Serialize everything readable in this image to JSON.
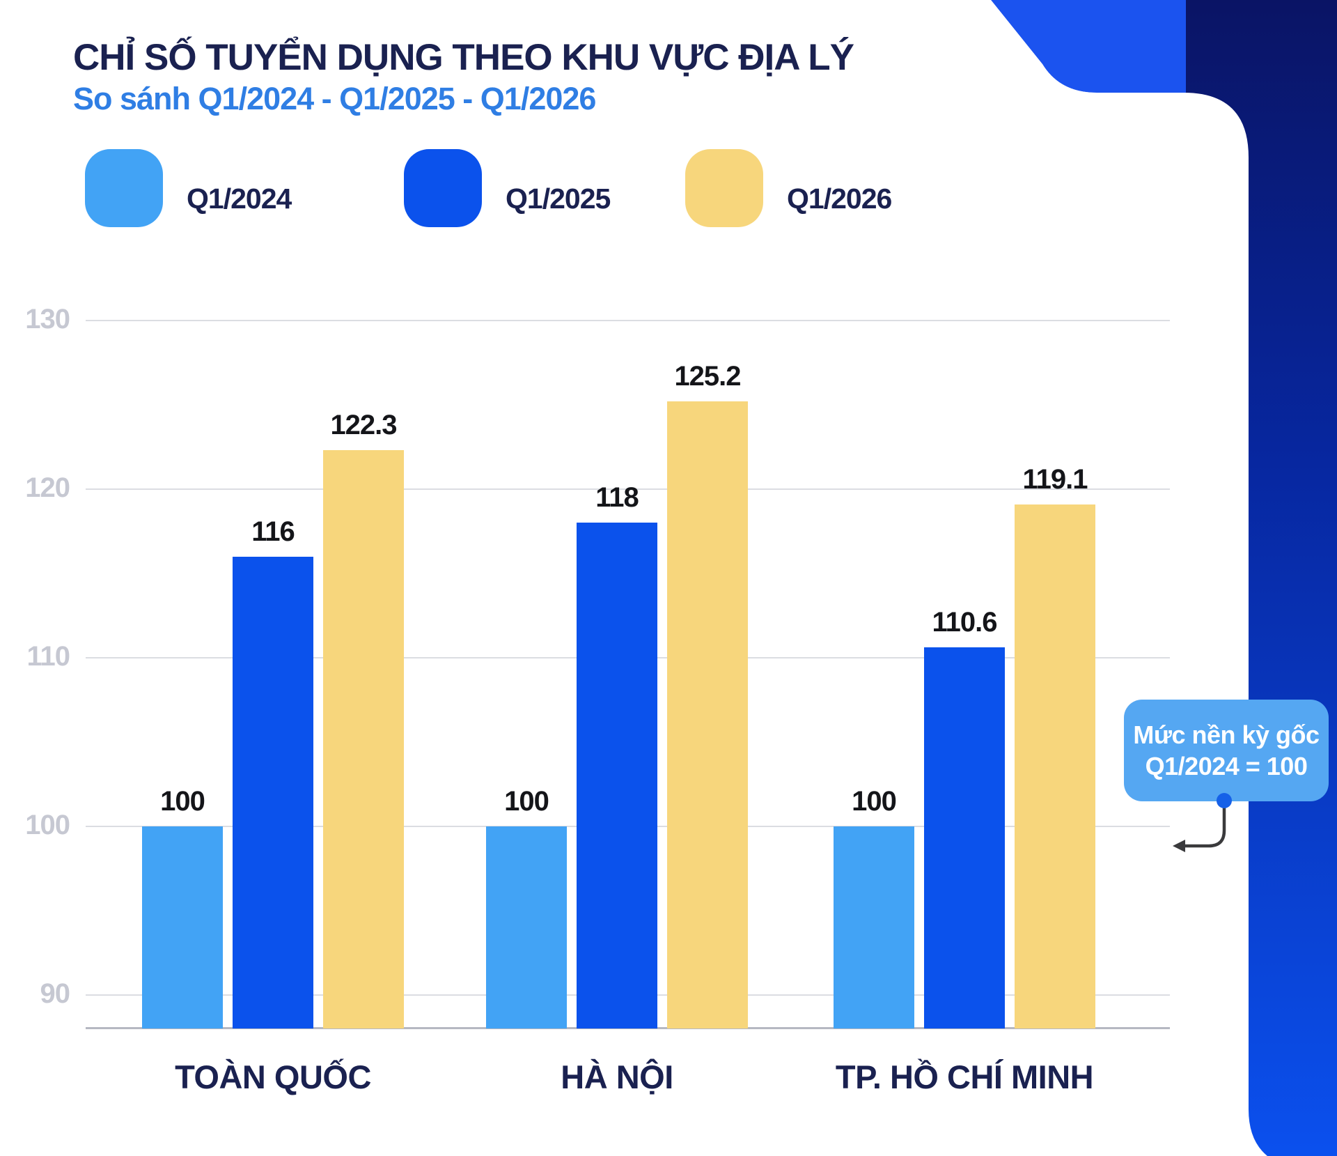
{
  "header": {
    "title": "CHỈ SỐ TUYỂN DỤNG THEO KHU VỰC ĐỊA LÝ",
    "subtitle": "So sánh Q1/2024 - Q1/2025 - Q1/2026"
  },
  "legend": [
    {
      "label": "Q1/2024",
      "color": "#42A3F5"
    },
    {
      "label": "Q1/2025",
      "color": "#0B52EC"
    },
    {
      "label": "Q1/2026",
      "color": "#F7D67C"
    }
  ],
  "chart_data": {
    "type": "bar",
    "title": "CHỈ SỐ TUYỂN DỤNG THEO KHU VỰC ĐỊA LÝ",
    "subtitle": "So sánh Q1/2024 - Q1/2025 - Q1/2026",
    "categories": [
      "TOÀN QUỐC",
      "HÀ NỘI",
      "TP. HỒ CHÍ MINH"
    ],
    "series": [
      {
        "name": "Q1/2024",
        "color": "#42A3F5",
        "values": [
          100,
          100,
          100
        ]
      },
      {
        "name": "Q1/2025",
        "color": "#0B52EC",
        "values": [
          116,
          118,
          110.6
        ]
      },
      {
        "name": "Q1/2026",
        "color": "#F7D67C",
        "values": [
          122.3,
          125.2,
          119.1
        ]
      }
    ],
    "value_labels": [
      "100",
      "116",
      "122.3",
      "100",
      "118",
      "125.2",
      "100",
      "110.6",
      "119.1"
    ],
    "yticks": [
      "130",
      "120",
      "110",
      "100",
      "90"
    ],
    "ytick_values": [
      130,
      120,
      110,
      100,
      90
    ],
    "ylim": [
      88,
      132
    ],
    "xlabel": "",
    "ylabel": "",
    "grid": true,
    "legend_position": "top"
  },
  "annotation": {
    "line1": "Mức nền kỳ gốc",
    "line2": "Q1/2024 = 100",
    "bg": "#55A7F2"
  },
  "colors": {
    "title": "#1A2150",
    "subtitle": "#2F7EE4",
    "gridline": "#DBDDE2",
    "axis_line": "#B5B8C2",
    "tick_label": "#C6C8D2",
    "value_label": "#141519",
    "category_label": "#1A2150",
    "ribbon_blue": "#1B53EF",
    "band_top": "#0A1465",
    "band_mid": "#0727A0",
    "band_bottom": "#0B50EE",
    "annotation_bg": "#55A7F2",
    "annotation_text": "#FFFFFF",
    "connector": "#3A3A3C",
    "dot": "#1661E8"
  }
}
